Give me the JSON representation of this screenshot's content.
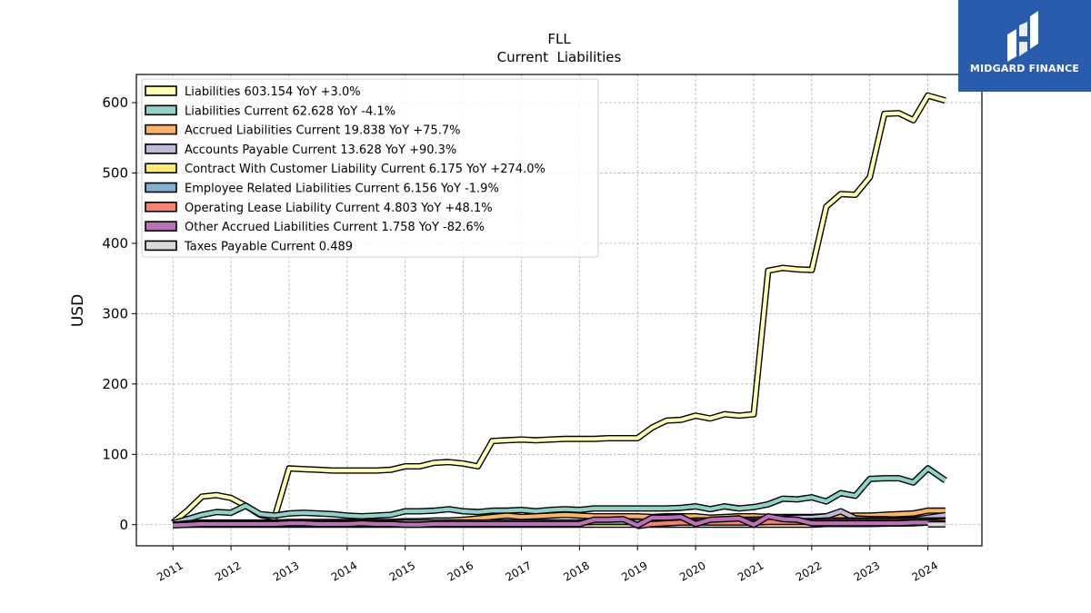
{
  "chart_data": {
    "type": "line",
    "title": "FLL",
    "subtitle": "Current  Liabilities",
    "ylabel": "USD",
    "xlabel": "",
    "ylim": [
      -30,
      640
    ],
    "xlim": [
      2010.37,
      2024.93
    ],
    "yticks": [
      0,
      100,
      200,
      300,
      400,
      500,
      600
    ],
    "xticks": [
      "2011",
      "2012",
      "2013",
      "2014",
      "2015",
      "2016",
      "2017",
      "2018",
      "2019",
      "2020",
      "2021",
      "2022",
      "2023",
      "2024"
    ],
    "grid": true,
    "legend_position": "top-left",
    "x": [
      2011.0,
      2011.25,
      2011.5,
      2011.75,
      2012.0,
      2012.25,
      2012.5,
      2012.75,
      2013.0,
      2013.25,
      2013.5,
      2013.75,
      2014.0,
      2014.25,
      2014.5,
      2014.75,
      2015.0,
      2015.25,
      2015.5,
      2015.75,
      2016.0,
      2016.25,
      2016.5,
      2016.75,
      2017.0,
      2017.25,
      2017.5,
      2017.75,
      2018.0,
      2018.25,
      2018.5,
      2018.75,
      2019.0,
      2019.25,
      2019.5,
      2019.75,
      2020.0,
      2020.25,
      2020.5,
      2020.75,
      2021.0,
      2021.25,
      2021.5,
      2021.75,
      2022.0,
      2022.25,
      2022.5,
      2022.75,
      2023.0,
      2023.25,
      2023.5,
      2023.75,
      2024.0,
      2024.3
    ],
    "series": [
      {
        "name": "Liabilities  603.154 YoY +3.0%",
        "color": "#ffffb3",
        "values": [
          3,
          20,
          40,
          42,
          38,
          27,
          14,
          10,
          80,
          79,
          78,
          77,
          77,
          77,
          77,
          78,
          83,
          83,
          88,
          89,
          87,
          83,
          119,
          120,
          121,
          120,
          121,
          122,
          122,
          122,
          123,
          123,
          123,
          138,
          148,
          149,
          155,
          151,
          157,
          155,
          157,
          361,
          365,
          363,
          362,
          452,
          470,
          469,
          494,
          584,
          585,
          575,
          610,
          603
        ]
      },
      {
        "name": "Liabilities Current  62.628 YoY -4.1%",
        "color": "#8dd3c7",
        "values": [
          2,
          8,
          14,
          18,
          17,
          27,
          15,
          13,
          16,
          17,
          16,
          15,
          13,
          12,
          13,
          14,
          19,
          19,
          20,
          22,
          19,
          18,
          20,
          20,
          21,
          19,
          21,
          22,
          21,
          23,
          23,
          23,
          23,
          23,
          23,
          24,
          26,
          22,
          26,
          23,
          25,
          29,
          37,
          36,
          39,
          33,
          45,
          41,
          65,
          66,
          66,
          60,
          80,
          63
        ]
      },
      {
        "name": "Accrued Liabilities Current  19.838 YoY +75.7%",
        "color": "#fdb462",
        "values": [
          0,
          2,
          3,
          3,
          3,
          3,
          3,
          3,
          4,
          4,
          4,
          4,
          4,
          4,
          4,
          4,
          5,
          5,
          6,
          6,
          7,
          9,
          11,
          13,
          11,
          12,
          13,
          14,
          13,
          12,
          12,
          12,
          12,
          11,
          12,
          12,
          12,
          10,
          11,
          12,
          12,
          11,
          11,
          11,
          11,
          12,
          12,
          13,
          13,
          14,
          15,
          16,
          20,
          20
        ]
      },
      {
        "name": "Accounts Payable Current  13.628 YoY +90.3%",
        "color": "#bebada",
        "values": [
          0,
          1,
          2,
          2,
          2,
          2,
          2,
          2,
          2,
          2,
          2,
          2,
          2,
          2,
          2,
          2,
          2,
          2,
          2,
          2,
          2,
          2,
          3,
          3,
          3,
          3,
          3,
          3,
          3,
          3,
          3,
          3,
          4,
          5,
          5,
          5,
          6,
          6,
          6,
          7,
          7,
          8,
          9,
          10,
          10,
          12,
          19,
          9,
          8,
          8,
          7,
          7,
          10,
          13.6
        ]
      },
      {
        "name": "Contract With Customer Liability Current  6.175 YoY +274.0%",
        "color": "#ffed6f",
        "values": [
          0,
          0,
          0,
          0,
          0,
          0,
          0,
          0,
          0,
          0,
          0,
          0,
          0,
          0,
          0,
          0,
          0,
          0,
          0,
          0,
          0,
          0,
          0,
          0,
          0,
          0,
          0,
          0,
          0,
          0,
          0,
          0,
          0,
          0,
          0,
          0,
          0,
          0,
          0,
          0,
          0,
          0,
          0,
          0,
          0,
          1,
          1,
          1,
          1,
          1.5,
          1.6,
          2,
          3,
          6.2
        ]
      },
      {
        "name": "Employee Related Liabilities Current  6.156 YoY -1.9%",
        "color": "#80b1d3",
        "values": [
          0,
          1,
          1,
          1,
          2,
          2,
          2,
          2,
          2,
          2,
          2,
          2,
          2,
          2,
          2,
          2,
          3,
          3,
          3,
          3,
          3,
          3,
          3,
          3,
          3,
          3,
          3,
          3,
          3,
          4,
          4,
          4,
          4,
          4,
          4,
          4,
          4,
          4,
          4,
          5,
          5,
          5,
          5,
          5,
          5,
          6,
          6,
          6,
          6,
          6,
          6,
          6,
          6,
          6.2
        ]
      },
      {
        "name": "Operating Lease Liability Current  4.803 YoY +48.1%",
        "color": "#fb8072",
        "values": [
          null,
          null,
          null,
          null,
          null,
          null,
          null,
          null,
          null,
          null,
          null,
          null,
          null,
          null,
          null,
          null,
          null,
          null,
          null,
          null,
          null,
          null,
          null,
          null,
          null,
          null,
          null,
          null,
          null,
          null,
          null,
          null,
          -2,
          1,
          2,
          3,
          3,
          3,
          3,
          3,
          3,
          4,
          4,
          4,
          4,
          4,
          4,
          4,
          4,
          4,
          4,
          4,
          4,
          4.8
        ]
      },
      {
        "name": "Other Accrued Liabilities Current  1.758 YoY -82.6%",
        "color": "#b972b8",
        "values": [
          -1,
          0,
          1,
          1,
          1,
          1,
          1,
          1,
          2,
          2,
          1,
          1,
          1,
          2,
          1,
          1,
          0,
          0,
          1,
          1,
          1,
          1,
          1,
          1,
          1,
          1,
          1,
          1,
          1,
          7,
          7,
          8,
          -1,
          10,
          10,
          11,
          1,
          7,
          8,
          9,
          0,
          12,
          8,
          7,
          2,
          2,
          2,
          2,
          2,
          2,
          2,
          3,
          3,
          1.8
        ]
      },
      {
        "name": "Taxes Payable Current  0.489",
        "color": "#d9d9d9",
        "values": [
          null,
          null,
          null,
          null,
          null,
          null,
          null,
          null,
          null,
          null,
          null,
          null,
          null,
          null,
          null,
          null,
          null,
          null,
          null,
          null,
          null,
          null,
          null,
          null,
          null,
          null,
          null,
          null,
          null,
          null,
          null,
          null,
          null,
          null,
          null,
          null,
          null,
          null,
          null,
          null,
          null,
          null,
          null,
          null,
          null,
          null,
          null,
          null,
          null,
          null,
          null,
          null,
          0.5,
          0.489
        ]
      }
    ]
  },
  "logo": {
    "text": "MIDGARD FINANCE",
    "icon": "midgard-logo-icon"
  }
}
